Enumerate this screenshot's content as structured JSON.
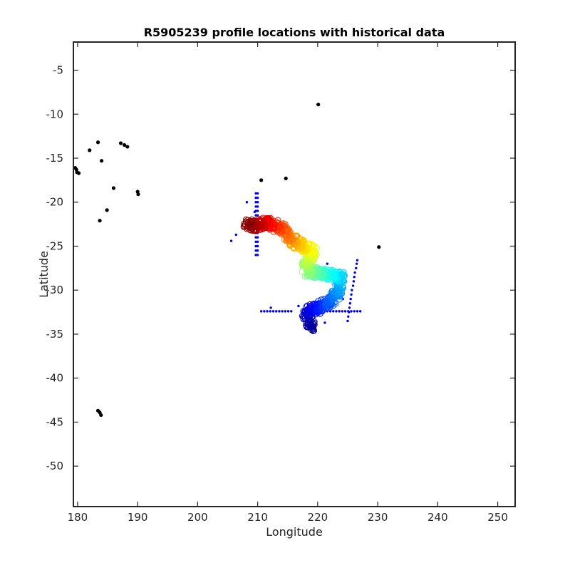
{
  "chart_data": {
    "type": "scatter",
    "title": "R5905239 profile locations with historical data",
    "xlabel": "Longitude",
    "ylabel": "Latitude",
    "xlim": [
      179.3,
      252.9
    ],
    "ylim": [
      -54.6,
      -1.8
    ],
    "x_ticks": [
      180,
      190,
      200,
      210,
      220,
      230,
      240,
      250
    ],
    "y_ticks": [
      -5,
      -10,
      -15,
      -20,
      -25,
      -30,
      -35,
      -40,
      -45,
      -50
    ],
    "x_tick_labels": [
      "180",
      "190",
      "200",
      "210",
      "220",
      "230",
      "240",
      "250"
    ],
    "y_tick_labels": [
      "-5",
      "-10",
      "-15",
      "-20",
      "-25",
      "-30",
      "-35",
      "-40",
      "-45",
      "-50"
    ],
    "grid": false,
    "legend": "none",
    "colormap": "jet",
    "colors": {
      "land": "#000000",
      "historical": "#0000ee",
      "axis": "#262626"
    },
    "series": [
      {
        "role": "land",
        "points": [
          [
            179.6,
            -16.1
          ],
          [
            179.9,
            -16.6
          ],
          [
            179.8,
            -16.3
          ],
          [
            180.2,
            -16.7
          ],
          [
            182.0,
            -14.1
          ],
          [
            183.4,
            -13.2
          ],
          [
            184.0,
            -15.3
          ],
          [
            183.7,
            -22.1
          ],
          [
            184.9,
            -20.9
          ],
          [
            186.0,
            -18.4
          ],
          [
            187.2,
            -13.3
          ],
          [
            187.8,
            -13.5
          ],
          [
            188.3,
            -13.7
          ],
          [
            190.0,
            -18.8
          ],
          [
            190.1,
            -19.1
          ],
          [
            210.6,
            -17.5
          ],
          [
            214.7,
            -17.3
          ],
          [
            220.1,
            -8.9
          ],
          [
            230.2,
            -25.1
          ],
          [
            183.4,
            -43.7
          ],
          [
            183.7,
            -43.9
          ],
          [
            183.9,
            -44.2
          ]
        ]
      },
      {
        "role": "historical",
        "points": [
          [
            205.6,
            -24.4
          ],
          [
            206.4,
            -23.7
          ],
          [
            208.2,
            -20.0
          ],
          [
            209.5,
            -21.1
          ],
          [
            209.7,
            -19.0
          ],
          [
            209.7,
            -19.5
          ],
          [
            209.7,
            -20.0
          ],
          [
            209.7,
            -20.5
          ],
          [
            209.7,
            -21.0
          ],
          [
            209.7,
            -21.5
          ],
          [
            209.7,
            -22.0
          ],
          [
            209.7,
            -22.5
          ],
          [
            209.7,
            -23.0
          ],
          [
            209.7,
            -23.5
          ],
          [
            209.7,
            -24.0
          ],
          [
            209.7,
            -24.5
          ],
          [
            209.7,
            -25.0
          ],
          [
            209.7,
            -25.5
          ],
          [
            209.7,
            -26.0
          ],
          [
            210.0,
            -19.0
          ],
          [
            210.0,
            -19.5
          ],
          [
            210.0,
            -20.0
          ],
          [
            210.0,
            -20.5
          ],
          [
            210.0,
            -21.0
          ],
          [
            210.0,
            -21.5
          ],
          [
            210.0,
            -22.0
          ],
          [
            210.0,
            -22.5
          ],
          [
            210.0,
            -23.0
          ],
          [
            210.0,
            -23.5
          ],
          [
            210.0,
            -24.0
          ],
          [
            210.0,
            -24.5
          ],
          [
            210.0,
            -25.0
          ],
          [
            210.0,
            -25.5
          ],
          [
            210.0,
            -26.0
          ],
          [
            210.6,
            -32.4
          ],
          [
            211.1,
            -32.4
          ],
          [
            211.6,
            -32.4
          ],
          [
            212.1,
            -32.4
          ],
          [
            212.6,
            -32.4
          ],
          [
            213.1,
            -32.4
          ],
          [
            213.6,
            -32.4
          ],
          [
            214.1,
            -32.4
          ],
          [
            214.6,
            -32.4
          ],
          [
            215.1,
            -32.4
          ],
          [
            215.6,
            -32.4
          ],
          [
            221.6,
            -32.4
          ],
          [
            222.1,
            -32.4
          ],
          [
            222.6,
            -32.4
          ],
          [
            223.1,
            -32.4
          ],
          [
            223.6,
            -32.4
          ],
          [
            224.1,
            -32.4
          ],
          [
            224.6,
            -32.4
          ],
          [
            225.1,
            -32.4
          ],
          [
            225.6,
            -32.4
          ],
          [
            226.1,
            -32.4
          ],
          [
            226.6,
            -32.4
          ],
          [
            227.1,
            -32.4
          ],
          [
            225.0,
            -33.5
          ],
          [
            225.1,
            -33.0
          ],
          [
            225.2,
            -32.5
          ],
          [
            225.3,
            -32.0
          ],
          [
            225.4,
            -31.5
          ],
          [
            225.5,
            -31.0
          ],
          [
            225.6,
            -30.5
          ],
          [
            225.7,
            -30.0
          ],
          [
            225.9,
            -29.5
          ],
          [
            226.0,
            -29.0
          ],
          [
            226.1,
            -28.5
          ],
          [
            226.2,
            -28.0
          ],
          [
            226.4,
            -27.5
          ],
          [
            226.5,
            -27.0
          ],
          [
            226.6,
            -26.6
          ],
          [
            212.2,
            -32.0
          ],
          [
            221.2,
            -33.7
          ],
          [
            221.6,
            -27.0
          ],
          [
            224.2,
            -31.0
          ],
          [
            216.8,
            -31.8
          ]
        ]
      },
      {
        "role": "profiles",
        "trajectory": [
          [
            219.0,
            -34.4
          ],
          [
            218.5,
            -33.6
          ],
          [
            218.2,
            -32.6
          ],
          [
            219.0,
            -32.2
          ],
          [
            220.5,
            -32.0
          ],
          [
            222.0,
            -31.3
          ],
          [
            223.0,
            -30.5
          ],
          [
            223.6,
            -29.5
          ],
          [
            223.8,
            -28.6
          ],
          [
            222.0,
            -28.2
          ],
          [
            220.0,
            -28.0
          ],
          [
            218.5,
            -27.9
          ],
          [
            218.0,
            -27.3
          ],
          [
            218.6,
            -26.5
          ],
          [
            219.2,
            -25.8
          ],
          [
            218.5,
            -25.2
          ],
          [
            217.2,
            -24.9
          ],
          [
            216.0,
            -24.4
          ],
          [
            215.0,
            -23.8
          ],
          [
            213.8,
            -22.9
          ],
          [
            212.3,
            -22.4
          ],
          [
            211.0,
            -22.4
          ],
          [
            209.5,
            -22.7
          ],
          [
            208.2,
            -22.5
          ]
        ]
      }
    ]
  }
}
